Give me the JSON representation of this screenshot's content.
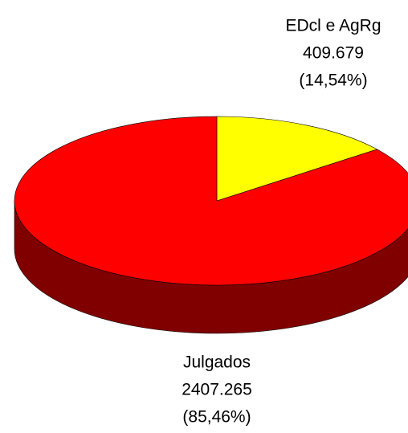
{
  "chart_data": {
    "type": "pie3d",
    "categories": [
      "EDcl e AgRg",
      "Julgados"
    ],
    "values": [
      409679,
      2407265
    ],
    "value_labels": [
      "409.679",
      "2407.265"
    ],
    "percentages": [
      14.54,
      85.46
    ],
    "percentage_labels": [
      "(14,54%)",
      "(85,46%)"
    ],
    "colors": [
      "#ffff00",
      "#ff0000"
    ]
  }
}
